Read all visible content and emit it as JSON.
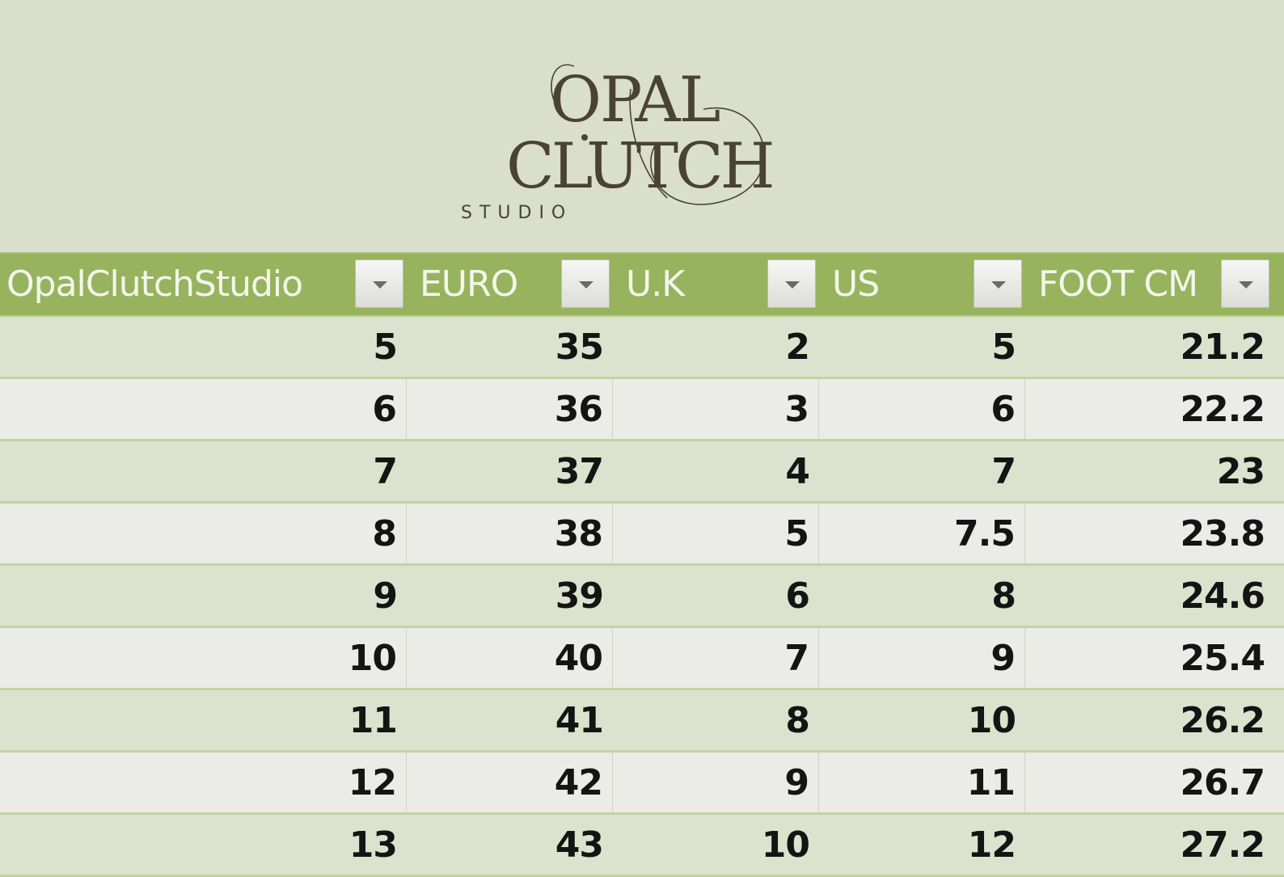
{
  "logo": {
    "line1": "OPAL",
    "line2": "CLUTCH",
    "line3": "STUDIO",
    "color": "#4a4330"
  },
  "table": {
    "headers": [
      "OpalClutchStudio",
      "EURO",
      "U.K",
      "US",
      "FOOT CM"
    ],
    "rows": [
      [
        "5",
        "35",
        "2",
        "5",
        "21.2"
      ],
      [
        "6",
        "36",
        "3",
        "6",
        "22.2"
      ],
      [
        "7",
        "37",
        "4",
        "7",
        "23"
      ],
      [
        "8",
        "38",
        "5",
        "7.5",
        "23.8"
      ],
      [
        "9",
        "39",
        "6",
        "8",
        "24.6"
      ],
      [
        "10",
        "40",
        "7",
        "9",
        "25.4"
      ],
      [
        "11",
        "41",
        "8",
        "10",
        "26.2"
      ],
      [
        "12",
        "42",
        "9",
        "11",
        "26.7"
      ],
      [
        "13",
        "43",
        "10",
        "12",
        "27.2"
      ]
    ]
  },
  "colors": {
    "background": "#d9dfcb",
    "header": "#97b35e",
    "row_odd": "#dce2ce",
    "row_even": "#ebebe8"
  }
}
